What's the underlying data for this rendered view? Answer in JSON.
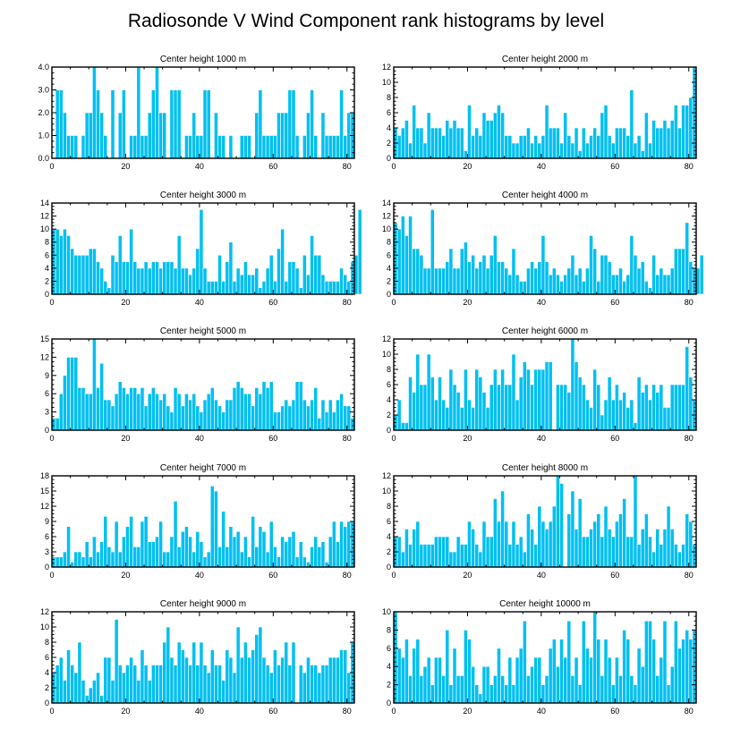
{
  "figure": {
    "title": "Radiosonde V Wind Component rank histograms by level"
  },
  "colors": {
    "bar": "#00c0f0",
    "bar_edge": "#ffffff",
    "axis": "#000000"
  },
  "chart_data": [
    {
      "type": "bar",
      "title": "Center height 1000 m",
      "xlim": [
        0,
        82
      ],
      "xticks": [
        "0",
        "20",
        "40",
        "60",
        "80"
      ],
      "ylim": [
        0,
        4
      ],
      "yticks": [
        "0.0",
        "1.0",
        "2.0",
        "3.0",
        "4.0"
      ],
      "values": [
        0,
        3,
        3,
        2,
        1,
        1,
        1,
        0,
        1,
        2,
        2,
        4,
        3,
        2,
        1,
        0,
        3,
        0,
        2,
        3,
        0,
        1,
        1,
        4,
        1,
        1,
        2,
        3,
        4,
        2,
        2,
        0,
        3,
        3,
        3,
        0,
        1,
        1,
        2,
        1,
        1,
        3,
        3,
        0,
        2,
        1,
        1,
        0,
        1,
        0,
        0,
        1,
        1,
        1,
        0,
        2,
        3,
        1,
        1,
        1,
        1,
        2,
        2,
        2,
        3,
        3,
        1,
        0,
        1,
        2,
        3,
        1,
        0,
        2,
        1,
        1,
        1,
        1,
        3,
        1,
        2,
        2
      ]
    },
    {
      "type": "bar",
      "title": "Center height 2000 m",
      "xlim": [
        0,
        82
      ],
      "xticks": [
        "0",
        "20",
        "40",
        "60",
        "80"
      ],
      "ylim": [
        0,
        12
      ],
      "yticks": [
        "0",
        "2",
        "4",
        "6",
        "8",
        "10",
        "12"
      ],
      "values": [
        4,
        3,
        4,
        5,
        2,
        7,
        4,
        4,
        2,
        6,
        4,
        4,
        4,
        3,
        5,
        4,
        5,
        4,
        4,
        1,
        7,
        3,
        4,
        3,
        6,
        5,
        5,
        6,
        7,
        6,
        3,
        3,
        2,
        2,
        3,
        3,
        4,
        2,
        3,
        2,
        3,
        7,
        4,
        4,
        4,
        2,
        6,
        3,
        2,
        4,
        1,
        4,
        2,
        3,
        4,
        3,
        6,
        7,
        3,
        2,
        4,
        4,
        4,
        3,
        9,
        2,
        3,
        1,
        6,
        2,
        5,
        4,
        4,
        5,
        4,
        5,
        7,
        4,
        7,
        7,
        8,
        12
      ]
    },
    {
      "type": "bar",
      "title": "Center height 3000 m",
      "xlim": [
        0,
        82
      ],
      "xticks": [
        "0",
        "20",
        "40",
        "60",
        "80"
      ],
      "ylim": [
        0,
        14
      ],
      "yticks": [
        "0",
        "2",
        "4",
        "6",
        "8",
        "10",
        "12",
        "14"
      ],
      "values": [
        10,
        10,
        9,
        10,
        9,
        7,
        6,
        6,
        6,
        6,
        7,
        7,
        5,
        4,
        2,
        1,
        6,
        5,
        9,
        5,
        5,
        10,
        5,
        4,
        4,
        5,
        4,
        5,
        5,
        4,
        5,
        5,
        5,
        4,
        9,
        4,
        4,
        3,
        4,
        7,
        13,
        4,
        2,
        2,
        2,
        6,
        2,
        5,
        8,
        2,
        4,
        3,
        5,
        3,
        3,
        4,
        1,
        2,
        4,
        6,
        2,
        7,
        10,
        2,
        5,
        5,
        4,
        1,
        6,
        3,
        9,
        6,
        6,
        3,
        2,
        2,
        2,
        2,
        4,
        3,
        2,
        5,
        6,
        13
      ]
    },
    {
      "type": "bar",
      "title": "Center height 4000 m",
      "xlim": [
        0,
        82
      ],
      "xticks": [
        "0",
        "20",
        "40",
        "60",
        "80"
      ],
      "ylim": [
        0,
        14
      ],
      "yticks": [
        "0",
        "2",
        "4",
        "6",
        "8",
        "10",
        "12",
        "14"
      ],
      "values": [
        11,
        10,
        12,
        9,
        12,
        7,
        7,
        6,
        4,
        4,
        13,
        4,
        4,
        4,
        5,
        7,
        4,
        4,
        7,
        8,
        5,
        6,
        4,
        5,
        6,
        4,
        6,
        9,
        5,
        5,
        4,
        3,
        7,
        3,
        2,
        2,
        4,
        5,
        4,
        5,
        9,
        5,
        3,
        4,
        3,
        2,
        3,
        4,
        6,
        3,
        4,
        2,
        4,
        9,
        7,
        2,
        6,
        6,
        5,
        3,
        3,
        4,
        2,
        3,
        9,
        6,
        4,
        5,
        2,
        1,
        6,
        3,
        4,
        3,
        3,
        4,
        7,
        7,
        7,
        11,
        5,
        4,
        4,
        6
      ]
    },
    {
      "type": "bar",
      "title": "Center height 5000 m",
      "xlim": [
        0,
        82
      ],
      "xticks": [
        "0",
        "20",
        "40",
        "60",
        "80"
      ],
      "ylim": [
        0,
        15
      ],
      "yticks": [
        "0",
        "3",
        "6",
        "9",
        "12",
        "15"
      ],
      "values": [
        2,
        2,
        6,
        9,
        12,
        12,
        12,
        7,
        7,
        6,
        6,
        15,
        7,
        11,
        5,
        5,
        4,
        6,
        8,
        7,
        6,
        7,
        7,
        6,
        7,
        4,
        6,
        7,
        6,
        5,
        6,
        4,
        3,
        7,
        6,
        4,
        6,
        5,
        6,
        4,
        3,
        5,
        6,
        7,
        5,
        4,
        3,
        5,
        5,
        7,
        8,
        7,
        6,
        6,
        4,
        7,
        6,
        8,
        7,
        8,
        3,
        3,
        4,
        5,
        4,
        5,
        8,
        8,
        5,
        4,
        5,
        7,
        2,
        5,
        3,
        5,
        3,
        5,
        6,
        4,
        4,
        2
      ]
    },
    {
      "type": "bar",
      "title": "Center height 6000 m",
      "xlim": [
        0,
        82
      ],
      "xticks": [
        "0",
        "20",
        "40",
        "60",
        "80"
      ],
      "ylim": [
        0,
        12
      ],
      "yticks": [
        "0",
        "2",
        "4",
        "6",
        "8",
        "10",
        "12"
      ],
      "values": [
        2,
        4,
        1,
        1,
        7,
        5,
        10,
        6,
        6,
        10,
        7,
        4,
        7,
        4,
        3,
        8,
        6,
        5,
        3,
        8,
        4,
        3,
        8,
        7,
        5,
        3,
        6,
        8,
        6,
        8,
        6,
        6,
        10,
        4,
        7,
        9,
        8,
        6,
        8,
        8,
        8,
        9,
        9,
        0,
        6,
        6,
        6,
        5,
        12,
        9,
        7,
        6,
        4,
        3,
        8,
        6,
        2,
        4,
        7,
        4,
        6,
        4,
        5,
        3,
        4,
        1,
        7,
        5,
        6,
        4,
        6,
        5,
        6,
        3,
        3,
        6,
        6,
        6,
        6,
        11,
        7,
        4
      ]
    },
    {
      "type": "bar",
      "title": "Center height 7000 m",
      "xlim": [
        0,
        82
      ],
      "xticks": [
        "0",
        "20",
        "40",
        "60",
        "80"
      ],
      "ylim": [
        0,
        18
      ],
      "yticks": [
        "0",
        "3",
        "6",
        "9",
        "12",
        "15",
        "18"
      ],
      "values": [
        2,
        2,
        2,
        3,
        8,
        1,
        3,
        3,
        2,
        5,
        2,
        6,
        3,
        5,
        10,
        4,
        3,
        9,
        3,
        6,
        8,
        10,
        4,
        4,
        9,
        10,
        5,
        5,
        6,
        9,
        3,
        3,
        6,
        13,
        4,
        7,
        8,
        6,
        3,
        7,
        5,
        2,
        3,
        16,
        15,
        4,
        11,
        4,
        8,
        6,
        7,
        3,
        6,
        2,
        10,
        4,
        8,
        7,
        3,
        9,
        4,
        2,
        6,
        5,
        6,
        7,
        2,
        5,
        2,
        1,
        4,
        6,
        4,
        5,
        1,
        6,
        9,
        5,
        9,
        8,
        9,
        9
      ]
    },
    {
      "type": "bar",
      "title": "Center height 8000 m",
      "xlim": [
        0,
        82
      ],
      "xticks": [
        "0",
        "20",
        "40",
        "60",
        "80"
      ],
      "ylim": [
        0,
        12
      ],
      "yticks": [
        "0",
        "2",
        "4",
        "6",
        "8",
        "10",
        "12"
      ],
      "values": [
        4,
        4,
        2,
        5,
        3,
        5,
        6,
        3,
        3,
        3,
        3,
        4,
        4,
        4,
        4,
        2,
        2,
        4,
        3,
        3,
        6,
        5,
        3,
        2,
        6,
        4,
        4,
        9,
        6,
        10,
        6,
        3,
        6,
        3,
        4,
        2,
        7,
        5,
        3,
        8,
        6,
        5,
        6,
        8,
        12,
        11,
        0,
        7,
        10,
        5,
        9,
        4,
        4,
        5,
        6,
        7,
        4,
        8,
        5,
        4,
        6,
        7,
        9,
        4,
        4,
        12,
        3,
        5,
        7,
        4,
        2,
        5,
        3,
        5,
        8,
        5,
        3,
        2,
        3,
        7,
        6,
        3
      ]
    },
    {
      "type": "bar",
      "title": "Center height 9000 m",
      "xlim": [
        0,
        82
      ],
      "xticks": [
        "0",
        "20",
        "40",
        "60",
        "80"
      ],
      "ylim": [
        0,
        12
      ],
      "yticks": [
        "0",
        "2",
        "4",
        "6",
        "8",
        "10",
        "12"
      ],
      "values": [
        4,
        5,
        6,
        3,
        7,
        5,
        4,
        8,
        3,
        1,
        2,
        3,
        4,
        1,
        6,
        6,
        3,
        11,
        5,
        4,
        5,
        6,
        5,
        3,
        7,
        5,
        3,
        5,
        5,
        5,
        8,
        10,
        6,
        5,
        8,
        7,
        6,
        5,
        8,
        5,
        8,
        5,
        4,
        7,
        5,
        5,
        3,
        7,
        6,
        4,
        10,
        6,
        8,
        6,
        7,
        9,
        10,
        6,
        5,
        4,
        7,
        5,
        6,
        8,
        5,
        8,
        0,
        5,
        4,
        6,
        5,
        5,
        4,
        5,
        5,
        6,
        6,
        6,
        7,
        7,
        4,
        8
      ]
    },
    {
      "type": "bar",
      "title": "Center height 10000 m",
      "xlim": [
        0,
        82
      ],
      "xticks": [
        "0",
        "20",
        "40",
        "60",
        "80"
      ],
      "ylim": [
        0,
        10
      ],
      "yticks": [
        "0",
        "2",
        "4",
        "6",
        "8",
        "10"
      ],
      "values": [
        10,
        6,
        5,
        7,
        3,
        6,
        7,
        3,
        4,
        5,
        2,
        5,
        5,
        3,
        8,
        2,
        6,
        3,
        3,
        8,
        7,
        4,
        2,
        1,
        4,
        4,
        2,
        3,
        6,
        3,
        2,
        5,
        2,
        5,
        6,
        9,
        3,
        4,
        5,
        5,
        2,
        3,
        6,
        7,
        4,
        7,
        5,
        9,
        3,
        5,
        2,
        9,
        6,
        5,
        10,
        7,
        3,
        7,
        5,
        2,
        5,
        3,
        8,
        7,
        3,
        2,
        6,
        4,
        9,
        9,
        7,
        3,
        5,
        9,
        2,
        4,
        9,
        6,
        7,
        8,
        7,
        8
      ]
    }
  ]
}
